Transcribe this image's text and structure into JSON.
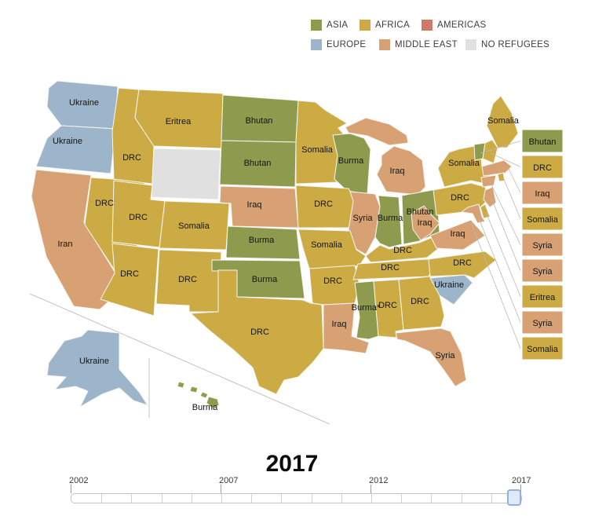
{
  "legend": {
    "items": [
      {
        "label": "ASIA",
        "region": "asia"
      },
      {
        "label": "AFRICA",
        "region": "africa"
      },
      {
        "label": "AMERICAS",
        "region": "americas"
      },
      {
        "label": "EUROPE",
        "region": "europe"
      },
      {
        "label": "MIDDLE EAST",
        "region": "middle_east"
      },
      {
        "label": "NO REFUGEES",
        "region": "no_refugees"
      }
    ]
  },
  "colors": {
    "asia": "#8e9a4d",
    "africa": "#ccab44",
    "americas": "#cc7b6b",
    "europe": "#9cb5ca",
    "middle_east": "#d8a173",
    "no_refugees": "#e0e0e0",
    "state_border": "#f7f6f2",
    "leader_line": "#b9b9b9",
    "label_text": "#141414"
  },
  "map": {
    "states": [
      {
        "id": "WA",
        "label": "Ukraine",
        "region": "europe"
      },
      {
        "id": "OR",
        "label": "Ukraine",
        "region": "europe"
      },
      {
        "id": "CA",
        "label": "Iran",
        "region": "middle_east"
      },
      {
        "id": "NV",
        "label": "DRC",
        "region": "africa"
      },
      {
        "id": "ID",
        "label": "DRC",
        "region": "africa"
      },
      {
        "id": "MT",
        "label": "Eritrea",
        "region": "africa"
      },
      {
        "id": "WY",
        "label": "",
        "region": "no_refugees"
      },
      {
        "id": "UT",
        "label": "DRC",
        "region": "africa"
      },
      {
        "id": "CO",
        "label": "Somalia",
        "region": "africa"
      },
      {
        "id": "AZ",
        "label": "DRC",
        "region": "africa"
      },
      {
        "id": "NM",
        "label": "DRC",
        "region": "africa"
      },
      {
        "id": "ND",
        "label": "Bhutan",
        "region": "asia"
      },
      {
        "id": "SD",
        "label": "Bhutan",
        "region": "asia"
      },
      {
        "id": "MN",
        "label": "Somalia",
        "region": "africa"
      },
      {
        "id": "WI",
        "label": "Burma",
        "region": "asia"
      },
      {
        "id": "MI",
        "label": "Iraq",
        "region": "middle_east"
      },
      {
        "id": "NE",
        "label": "Iraq",
        "region": "middle_east"
      },
      {
        "id": "IA",
        "label": "DRC",
        "region": "africa"
      },
      {
        "id": "IL",
        "label": "Syria",
        "region": "middle_east"
      },
      {
        "id": "IN",
        "label": "Burma",
        "region": "asia"
      },
      {
        "id": "OH",
        "label": "Bhutan",
        "region": "asia"
      },
      {
        "id": "MO",
        "label": "Somalia",
        "region": "africa"
      },
      {
        "id": "KS",
        "label": "Burma",
        "region": "asia"
      },
      {
        "id": "OK",
        "label": "Burma",
        "region": "asia"
      },
      {
        "id": "AR",
        "label": "DRC",
        "region": "africa"
      },
      {
        "id": "LA",
        "label": "Iraq",
        "region": "middle_east"
      },
      {
        "id": "TX",
        "label": "DRC",
        "region": "africa"
      },
      {
        "id": "MS",
        "label": "Burma*",
        "region": "asia"
      },
      {
        "id": "AL",
        "label": "DRC",
        "region": "africa"
      },
      {
        "id": "GA",
        "label": "DRC",
        "region": "africa"
      },
      {
        "id": "TN",
        "label": "DRC",
        "region": "africa"
      },
      {
        "id": "KY",
        "label": "DRC",
        "region": "africa"
      },
      {
        "id": "FL",
        "label": "Syria",
        "region": "middle_east"
      },
      {
        "id": "SC",
        "label": "Ukraine",
        "region": "europe"
      },
      {
        "id": "NC",
        "label": "DRC",
        "region": "africa"
      },
      {
        "id": "VA",
        "label": "Iraq",
        "region": "middle_east"
      },
      {
        "id": "WV",
        "label": "Iraq",
        "region": "middle_east"
      },
      {
        "id": "PA",
        "label": "DRC",
        "region": "africa"
      },
      {
        "id": "NY",
        "label": "Somalia",
        "region": "africa"
      },
      {
        "id": "ME",
        "label": "Somalia",
        "region": "africa"
      },
      {
        "id": "VT",
        "label": "",
        "region": "asia"
      },
      {
        "id": "NH",
        "label": "",
        "region": "africa"
      },
      {
        "id": "MA",
        "label": "",
        "region": "middle_east"
      },
      {
        "id": "RI",
        "label": "",
        "region": "africa"
      },
      {
        "id": "CT",
        "label": "",
        "region": "middle_east"
      },
      {
        "id": "NJ",
        "label": "",
        "region": "middle_east"
      },
      {
        "id": "DE",
        "label": "",
        "region": "africa"
      },
      {
        "id": "MD",
        "label": "",
        "region": "middle_east"
      },
      {
        "id": "AK",
        "label": "Ukraine",
        "region": "europe"
      },
      {
        "id": "HI",
        "label": "Burma",
        "region": "asia"
      }
    ],
    "callouts": [
      {
        "target": "VT",
        "label": "Bhutan",
        "region": "asia"
      },
      {
        "target": "NH",
        "label": "DRC",
        "region": "africa"
      },
      {
        "target": "MA",
        "label": "Iraq",
        "region": "middle_east"
      },
      {
        "target": "RI",
        "label": "Somalia",
        "region": "africa"
      },
      {
        "target": "CT",
        "label": "Syria",
        "region": "middle_east"
      },
      {
        "target": "NJ",
        "label": "Syria",
        "region": "middle_east"
      },
      {
        "target": "DE",
        "label": "Eritrea",
        "region": "africa"
      },
      {
        "target": "MD",
        "label": "Syria",
        "region": "middle_east"
      },
      {
        "target": "DC",
        "label": "Somalia",
        "region": "africa"
      }
    ]
  },
  "timeline": {
    "current_year": "2017",
    "axis_ticks": [
      "2002",
      "2007",
      "2012",
      "2017"
    ]
  }
}
